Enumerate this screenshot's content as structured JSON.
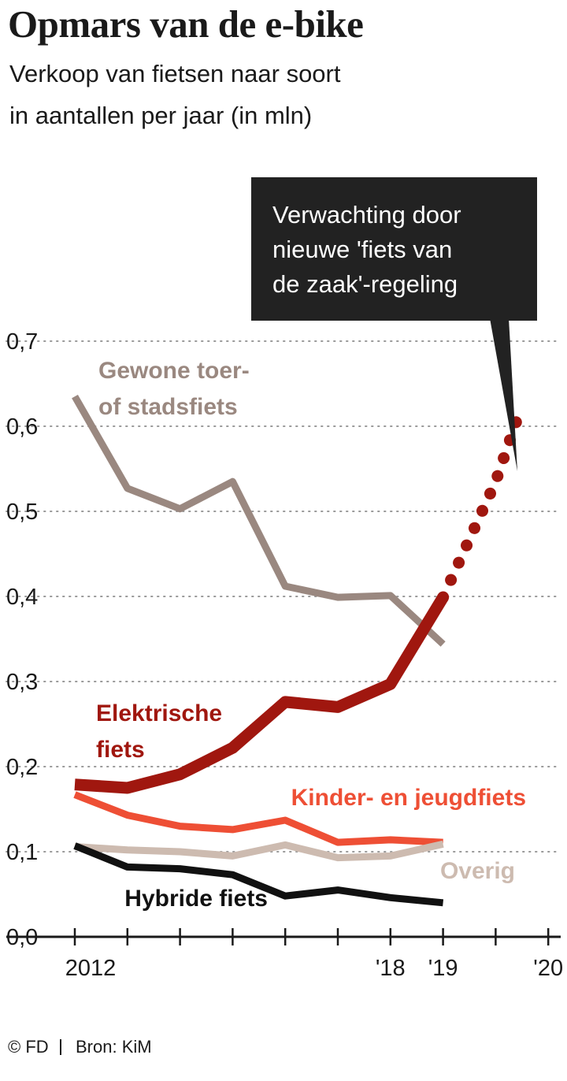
{
  "title": "Opmars van de e-bike",
  "subtitle_line1": "Verkoop van fietsen naar soort",
  "subtitle_line2": "in aantallen per jaar (in mln)",
  "footer": {
    "credit": "© FD",
    "source": "Bron: KiM"
  },
  "chart_data": {
    "type": "line",
    "title": "Opmars van de e-bike",
    "subtitle": "Verkoop van fietsen naar soort in aantallen per jaar (in mln)",
    "x": [
      2012,
      2013,
      2014,
      2015,
      2016,
      2017,
      2018,
      2019
    ],
    "x_tick_labels": [
      "2012",
      "",
      "",
      "",
      "",
      "",
      "'18",
      "'19",
      "",
      "'20"
    ],
    "ylim": [
      0,
      0.7
    ],
    "y_ticks": [
      0.0,
      0.1,
      0.2,
      0.3,
      0.4,
      0.5,
      0.6,
      0.7
    ],
    "y_tick_labels": [
      "0,0",
      "0,1",
      "0,2",
      "0,3",
      "0,4",
      "0,5",
      "0,6",
      "0,7"
    ],
    "grid": "horizontal dotted",
    "series": [
      {
        "name": "Gewone toer- of stadsfiets",
        "label_lines": [
          "Gewone toer-",
          "of stadsfiets"
        ],
        "color": "#9a8880",
        "values": [
          0.635,
          0.527,
          0.503,
          0.535,
          0.412,
          0.399,
          0.401,
          0.344
        ]
      },
      {
        "name": "Elektrische fiets",
        "label_lines": [
          "Elektrische",
          "fiets"
        ],
        "color": "#a0170f",
        "values": [
          0.179,
          0.175,
          0.191,
          0.222,
          0.276,
          0.27,
          0.297,
          0.399
        ]
      },
      {
        "name": "Kinder- en jeugdfiets",
        "label_lines": [
          "Kinder- en jeugdfiets"
        ],
        "color": "#ee4f35",
        "values": [
          0.167,
          0.143,
          0.13,
          0.126,
          0.137,
          0.111,
          0.114,
          0.111
        ]
      },
      {
        "name": "Overig",
        "label_lines": [
          "Overig"
        ],
        "color": "#cdbbb0",
        "values": [
          0.106,
          0.102,
          0.1,
          0.095,
          0.108,
          0.093,
          0.095,
          0.109
        ]
      },
      {
        "name": "Hybride fiets",
        "label_lines": [
          "Hybride fiets"
        ],
        "color": "#111111",
        "values": [
          0.107,
          0.082,
          0.08,
          0.073,
          0.048,
          0.055,
          0.046,
          0.04
        ]
      }
    ],
    "forecast": {
      "series": "Elektrische fiets",
      "color": "#a0170f",
      "x": [
        2019,
        2019.25,
        2019.5,
        2019.75,
        2020,
        2020.25,
        2020.5
      ],
      "values": [
        0.399,
        0.433,
        0.467,
        0.501,
        0.535,
        0.58,
        0.625
      ],
      "annotation_lines": [
        "Verwachting door",
        "nieuwe 'fiets van",
        "de zaak'-regeling"
      ]
    }
  }
}
